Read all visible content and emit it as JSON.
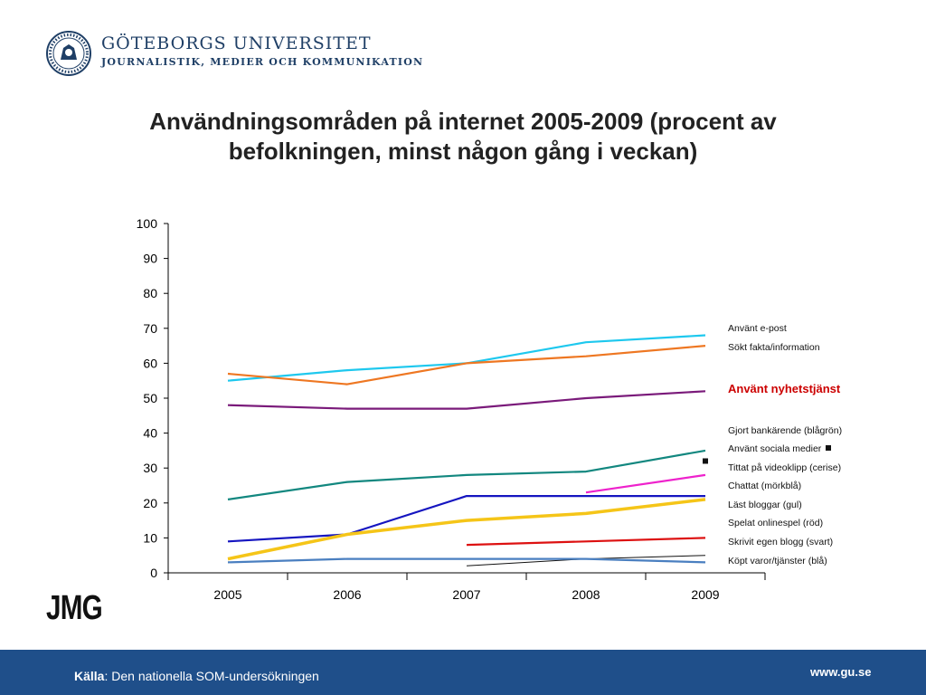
{
  "header": {
    "university": "GÖTEBORGS UNIVERSITET",
    "department": "JOURNALISTIK, MEDIER OCH KOMMUNIKATION"
  },
  "chart_data": {
    "type": "line",
    "title": "Användningsområden på internet 2005-2009 (procent av befolkningen, minst någon gång i veckan)",
    "x": [
      "2005",
      "2006",
      "2007",
      "2008",
      "2009"
    ],
    "ylim": [
      0,
      100
    ],
    "yticks": [
      "0",
      "10",
      "20",
      "30",
      "40",
      "50",
      "60",
      "70",
      "80",
      "90",
      "100"
    ],
    "grid": false,
    "legend_position": "right",
    "series": [
      {
        "name": "Använt e-post",
        "color": "#1ec8ee",
        "values": [
          55,
          58,
          60,
          66,
          68
        ]
      },
      {
        "name": "Sökt fakta/information",
        "color": "#ee7722",
        "values": [
          57,
          54,
          60,
          62,
          65
        ]
      },
      {
        "name": "Använt nyhetstjänst",
        "color": "#7a1a7a",
        "values": [
          48,
          47,
          47,
          50,
          52
        ]
      },
      {
        "name": "Gjort bankärende (blågrön)",
        "color": "#12877f",
        "values": [
          21,
          26,
          28,
          29,
          35
        ]
      },
      {
        "name": "Använt sociala medier",
        "color": "#111111",
        "values": [
          null,
          null,
          null,
          null,
          32
        ]
      },
      {
        "name": "Tittat på videoklipp (cerise)",
        "color": "#ee22cc",
        "values": [
          null,
          null,
          null,
          23,
          28
        ]
      },
      {
        "name": "Chattat (mörkblå)",
        "color": "#1515c0",
        "values": [
          9,
          11,
          22,
          22,
          22
        ]
      },
      {
        "name": "Läst bloggar (gul)",
        "color": "#f5c518",
        "values": [
          4,
          11,
          15,
          17,
          21
        ]
      },
      {
        "name": "Spelat onlinespel (röd)",
        "color": "#dd1111",
        "values": [
          null,
          null,
          8,
          9,
          10
        ]
      },
      {
        "name": "Skrivit egen blogg (svart)",
        "color": "#111111",
        "values": [
          null,
          null,
          2,
          4,
          5
        ]
      },
      {
        "name": "Köpt varor/tjänster (blå)",
        "color": "#4a7fc0",
        "values": [
          3,
          4,
          4,
          4,
          3
        ]
      }
    ]
  },
  "logo": {
    "text": "JMG"
  },
  "footer": {
    "source_label": "Källa",
    "source_text": ": Den nationella SOM-undersökningen",
    "url": "www.gu.se"
  }
}
